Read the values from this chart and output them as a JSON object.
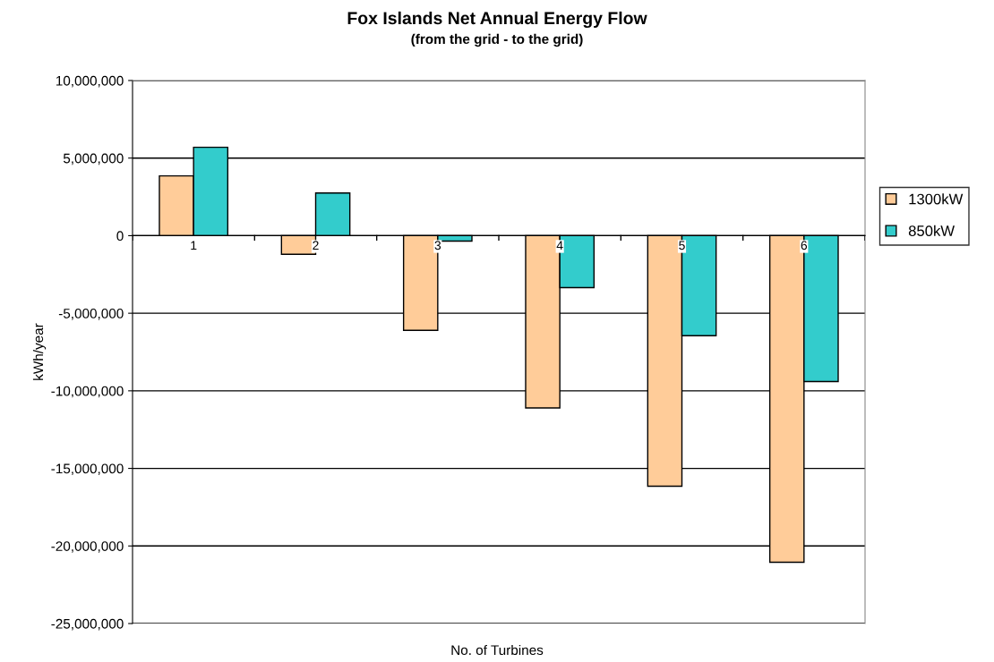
{
  "chart_data": {
    "type": "bar",
    "title": "Fox Islands Net Annual Energy Flow",
    "subtitle": "(from the grid - to the grid)",
    "xlabel": "No. of Turbines",
    "ylabel": "kWh/year",
    "categories": [
      "1",
      "2",
      "3",
      "4",
      "5",
      "6"
    ],
    "series": [
      {
        "name": "1300kW",
        "color": "#ffcc99",
        "values": [
          3850000,
          -1200000,
          -6100000,
          -11100000,
          -16150000,
          -21050000
        ]
      },
      {
        "name": "850kW",
        "color": "#33cccc",
        "values": [
          5700000,
          2750000,
          -350000,
          -3350000,
          -6450000,
          -9400000
        ]
      }
    ],
    "ylim": [
      -25000000,
      10000000
    ],
    "yticks": [
      {
        "value": -25000000,
        "label": "-25,000,000"
      },
      {
        "value": -20000000,
        "label": "-20,000,000"
      },
      {
        "value": -15000000,
        "label": "-15,000,000"
      },
      {
        "value": -10000000,
        "label": "-10,000,000"
      },
      {
        "value": -5000000,
        "label": "-5,000,000"
      },
      {
        "value": 0,
        "label": "0"
      },
      {
        "value": 5000000,
        "label": "5,000,000"
      },
      {
        "value": 10000000,
        "label": "10,000,000"
      }
    ],
    "grid": "y",
    "legend": "right"
  }
}
